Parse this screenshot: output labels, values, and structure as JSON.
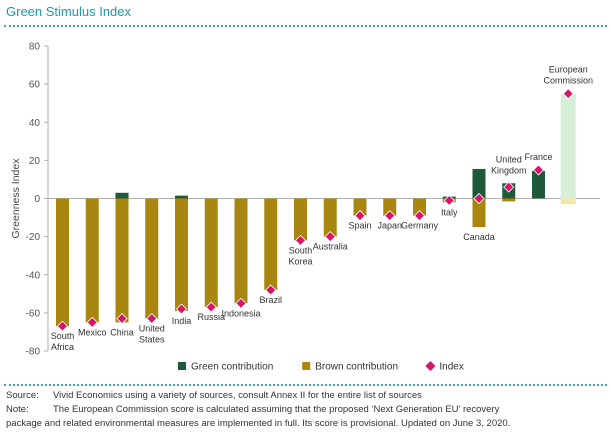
{
  "header": {
    "title": "Green Stimulus Index"
  },
  "footer": {
    "source_label": "Source:",
    "source_text": "Vivid Economics using a variety of sources, consult Annex II for the entire list of sources",
    "note_label": "Note:",
    "note_line1": "The European Commission score is calculated assuming that the proposed ‘Next Generation EU’ recovery",
    "note_line2": "package and related environmental measures are implemented in full. Its score is provisional. Updated on June 3, 2020."
  },
  "colors": {
    "green": "#1e5a3a",
    "brown": "#a8860f",
    "index": "#d4156a",
    "ec": "#d6f0d8",
    "ec_brown": "#f2e8a8",
    "accent": "#1a9aaa"
  },
  "chart_data": {
    "type": "bar",
    "ylabel": "Greenness Index",
    "ylim": [
      -80,
      80
    ],
    "yticks": [
      -80,
      -60,
      -40,
      -20,
      0,
      20,
      40,
      60,
      80
    ],
    "categories": [
      {
        "lines": [
          "South",
          "Africa"
        ],
        "pos": "below"
      },
      {
        "lines": [
          "Mexico"
        ],
        "pos": "below"
      },
      {
        "lines": [
          "China"
        ],
        "pos": "below"
      },
      {
        "lines": [
          "United",
          "States"
        ],
        "pos": "below"
      },
      {
        "lines": [
          "India"
        ],
        "pos": "below"
      },
      {
        "lines": [
          "Russia"
        ],
        "pos": "below"
      },
      {
        "lines": [
          "Indonesia"
        ],
        "pos": "below"
      },
      {
        "lines": [
          "Brazil"
        ],
        "pos": "below"
      },
      {
        "lines": [
          "South",
          "Korea"
        ],
        "pos": "below"
      },
      {
        "lines": [
          "Australia"
        ],
        "pos": "below"
      },
      {
        "lines": [
          "Spain"
        ],
        "pos": "below"
      },
      {
        "lines": [
          "Japan"
        ],
        "pos": "below"
      },
      {
        "lines": [
          "Germany"
        ],
        "pos": "below"
      },
      {
        "lines": [
          "Italy"
        ],
        "pos": "below"
      },
      {
        "lines": [
          "Canada"
        ],
        "pos": "below"
      },
      {
        "lines": [
          "United",
          "Kingdom"
        ],
        "pos": "above"
      },
      {
        "lines": [
          "France"
        ],
        "pos": "above"
      },
      {
        "lines": [
          "European",
          "Commission"
        ],
        "pos": "above"
      }
    ],
    "series": [
      {
        "name": "Green contribution",
        "values": [
          0,
          0,
          3,
          0,
          1.5,
          0,
          0,
          0,
          0,
          0,
          0,
          0,
          0,
          1,
          15.5,
          8,
          14.5,
          55
        ]
      },
      {
        "name": "Brown contribution",
        "values": [
          -67,
          -65,
          -65,
          -63,
          -59,
          -57,
          -55,
          -48,
          -22,
          -20,
          -9,
          -9,
          -9,
          -2,
          -15,
          -1.5,
          0,
          -3
        ]
      },
      {
        "name": "Index",
        "values": [
          -67,
          -65,
          -63,
          -63,
          -58,
          -57,
          -55,
          -48,
          -22,
          -20,
          -9,
          -9,
          -9,
          -1,
          0,
          6,
          15,
          55
        ]
      }
    ],
    "provisional_category": "European Commission",
    "legend": {
      "position": "bottom",
      "items": [
        {
          "label": "Green contribution",
          "kind": "square",
          "color": "#1e5a3a"
        },
        {
          "label": "Brown contribution",
          "kind": "square",
          "color": "#a8860f"
        },
        {
          "label": "Index",
          "kind": "diamond",
          "color": "#d4156a"
        }
      ]
    }
  }
}
